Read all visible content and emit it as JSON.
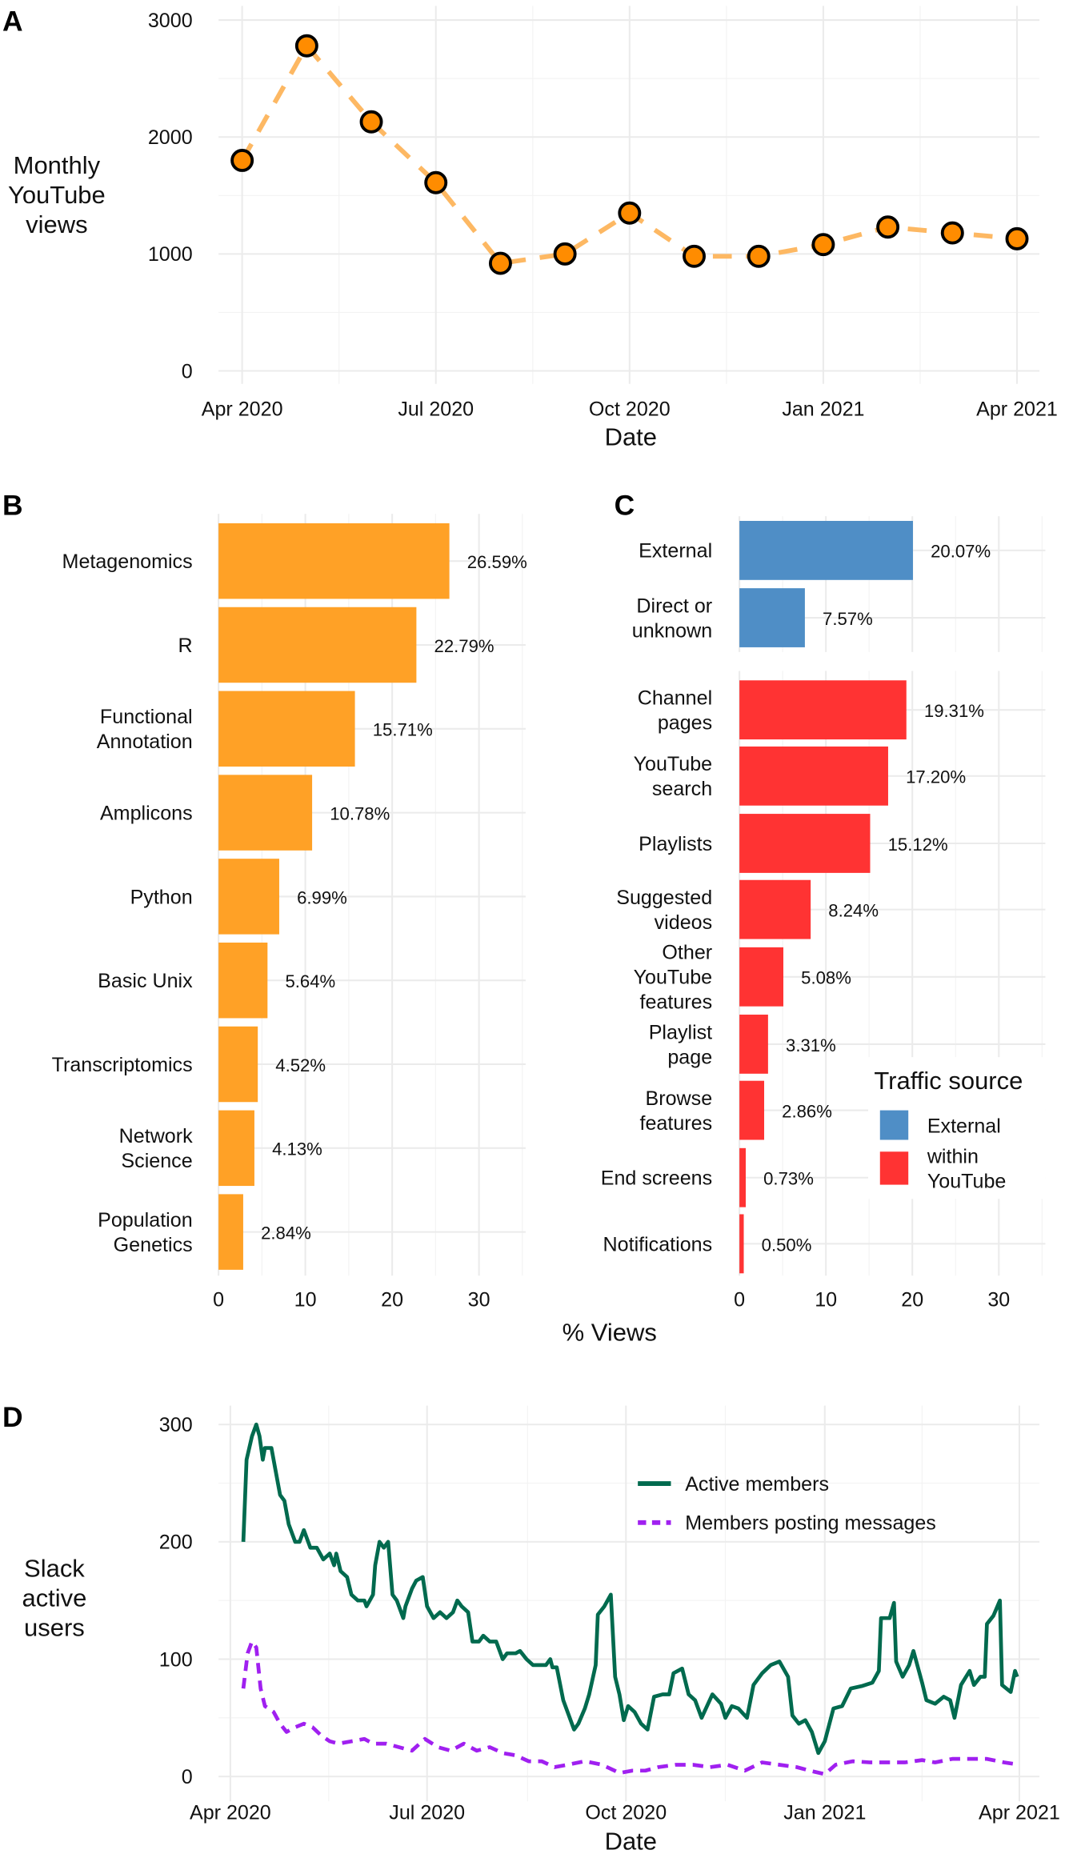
{
  "chart_data": [
    {
      "panel": "A",
      "type": "line",
      "title": "",
      "xlabel": "Date",
      "ylabel": [
        "Monthly",
        "YouTube",
        "views"
      ],
      "x": [
        "2020-04",
        "2020-05",
        "2020-06",
        "2020-07",
        "2020-08",
        "2020-09",
        "2020-10",
        "2020-11",
        "2020-12",
        "2021-01",
        "2021-02",
        "2021-03",
        "2021-04"
      ],
      "values": [
        1800,
        2780,
        2130,
        1610,
        920,
        1000,
        1350,
        980,
        980,
        1080,
        1230,
        1180,
        1130
      ],
      "ylim": [
        0,
        3000
      ],
      "yticks": [
        "0",
        "1000",
        "2000",
        "3000"
      ],
      "xticks": [
        "Apr 2020",
        "Jul 2020",
        "Oct 2020",
        "Jan 2021",
        "Apr 2021"
      ],
      "line_color": "#FDB863",
      "point_color": "#FF8C00",
      "grid": true
    },
    {
      "panel": "B",
      "type": "bar",
      "orientation": "horizontal",
      "categories": [
        [
          "Metagenomics"
        ],
        [
          "R"
        ],
        [
          "Functional",
          "Annotation"
        ],
        [
          "Amplicons"
        ],
        [
          "Python"
        ],
        [
          "Basic Unix"
        ],
        [
          "Transcriptomics"
        ],
        [
          "Network",
          "Science"
        ],
        [
          "Population",
          "Genetics"
        ]
      ],
      "values": [
        26.59,
        22.79,
        15.71,
        10.78,
        6.99,
        5.64,
        4.52,
        4.13,
        2.84
      ],
      "labels": [
        "26.59%",
        "22.79%",
        "15.71%",
        "10.78%",
        "6.99%",
        "5.64%",
        "4.52%",
        "4.13%",
        "2.84%"
      ],
      "xlim": [
        0,
        35
      ],
      "xticks": [
        "0",
        "10",
        "20",
        "30"
      ],
      "color": "#FFA126"
    },
    {
      "panel": "C",
      "type": "bar",
      "orientation": "horizontal",
      "categories": [
        [
          "External"
        ],
        [
          "Direct or",
          "unknown"
        ],
        [
          "Channel",
          "pages"
        ],
        [
          "YouTube",
          "search"
        ],
        [
          "Playlists"
        ],
        [
          "Suggested",
          "videos"
        ],
        [
          "Other",
          "YouTube",
          "features"
        ],
        [
          "Playlist",
          "page"
        ],
        [
          "Browse",
          "features"
        ],
        [
          "End screens"
        ],
        [
          "Notifications"
        ]
      ],
      "values": [
        20.07,
        7.57,
        19.31,
        17.2,
        15.12,
        8.24,
        5.08,
        3.31,
        2.86,
        0.73,
        0.5
      ],
      "labels": [
        "20.07%",
        "7.57%",
        "19.31%",
        "17.20%",
        "15.12%",
        "8.24%",
        "5.08%",
        "3.31%",
        "2.86%",
        "0.73%",
        "0.50%"
      ],
      "group": [
        "External",
        "External",
        "within YouTube",
        "within YouTube",
        "within YouTube",
        "within YouTube",
        "within YouTube",
        "within YouTube",
        "within YouTube",
        "within YouTube",
        "within YouTube"
      ],
      "xlim": [
        0,
        35
      ],
      "xticks": [
        "0",
        "10",
        "20",
        "30"
      ],
      "legend": {
        "title": "Traffic source",
        "entries": [
          {
            "label": [
              "External"
            ],
            "color": "#4F8EC6"
          },
          {
            "label": [
              "within",
              "YouTube"
            ],
            "color": "#FF3333"
          }
        ],
        "position": "bottom-right"
      }
    },
    {
      "panel": "D",
      "type": "line",
      "xlabel": "Date",
      "ylabel": [
        "Slack",
        "active",
        "users"
      ],
      "ylim": [
        0,
        300
      ],
      "yticks": [
        "0",
        "100",
        "200",
        "300"
      ],
      "xticks": [
        "Apr 2020",
        "Jul 2020",
        "Oct 2020",
        "Jan 2021",
        "Apr 2021"
      ],
      "x_unit": "days since 2020-04-01",
      "series": [
        {
          "name": "Active members",
          "color": "#006A4E",
          "dash": false,
          "x": [
            6,
            7.5,
            10,
            12,
            13.5,
            15,
            16,
            19,
            21,
            23,
            25,
            27,
            30,
            32,
            34,
            37,
            40,
            43,
            46,
            48,
            49,
            51,
            54,
            56,
            59,
            62,
            63,
            66,
            67,
            69,
            71,
            73,
            75,
            77,
            80,
            81,
            84,
            86,
            89,
            91,
            94,
            97,
            100,
            103,
            105,
            107,
            110,
            112,
            115,
            117,
            120,
            123,
            126,
            128,
            132,
            134,
            137,
            140,
            143,
            146,
            148,
            149,
            151,
            154,
            157,
            159,
            161,
            164,
            166,
            169,
            170,
            173,
            176,
            178,
            180,
            182,
            184,
            187,
            190,
            193,
            196,
            200,
            203,
            205,
            209,
            212,
            215,
            218,
            223,
            227,
            229,
            232,
            235,
            239,
            242,
            246,
            250,
            254,
            258,
            260,
            263,
            266,
            269,
            272,
            275,
            279,
            283,
            287,
            292,
            297,
            300,
            301,
            305,
            307,
            308,
            311,
            314,
            316,
            320,
            322,
            326,
            330,
            333,
            335,
            338,
            342,
            344,
            347,
            349,
            350,
            353,
            356,
            357,
            361,
            363,
            364
          ],
          "y": [
            200,
            270,
            290,
            300,
            290,
            270,
            280,
            280,
            260,
            240,
            235,
            215,
            200,
            200,
            210,
            195,
            195,
            185,
            190,
            180,
            190,
            175,
            170,
            155,
            150,
            150,
            145,
            155,
            180,
            200,
            195,
            200,
            155,
            150,
            135,
            145,
            160,
            167,
            170,
            145,
            135,
            140,
            135,
            140,
            150,
            145,
            140,
            115,
            115,
            120,
            115,
            115,
            100,
            105,
            105,
            107,
            100,
            95,
            95,
            95,
            100,
            93,
            93,
            65,
            50,
            40,
            45,
            58,
            70,
            95,
            138,
            145,
            155,
            85,
            70,
            48,
            60,
            55,
            45,
            40,
            68,
            70,
            70,
            88,
            92,
            70,
            65,
            50,
            70,
            62,
            50,
            60,
            58,
            50,
            78,
            88,
            95,
            98,
            85,
            52,
            45,
            48,
            38,
            20,
            30,
            58,
            60,
            75,
            77,
            80,
            90,
            135,
            135,
            148,
            98,
            85,
            95,
            107,
            80,
            65,
            62,
            68,
            65,
            50,
            78,
            90,
            78,
            85,
            85,
            130,
            137,
            150,
            78,
            72,
            90,
            85
          ]
        },
        {
          "name": "Members posting messages",
          "color": "#A020F0",
          "dash": true,
          "x": [
            6,
            8,
            10,
            12,
            14,
            16,
            20,
            23,
            26,
            30,
            34,
            38,
            42,
            46,
            50,
            56,
            62,
            66,
            72,
            78,
            84,
            90,
            96,
            102,
            108,
            114,
            120,
            126,
            132,
            138,
            144,
            150,
            156,
            164,
            172,
            180,
            186,
            192,
            198,
            206,
            214,
            222,
            230,
            238,
            246,
            254,
            262,
            268,
            275,
            280,
            288,
            296,
            304,
            312,
            320,
            326,
            334,
            342,
            350,
            358,
            365
          ],
          "y": [
            75,
            105,
            115,
            110,
            75,
            60,
            55,
            45,
            38,
            42,
            45,
            42,
            35,
            30,
            28,
            30,
            32,
            28,
            28,
            25,
            22,
            32,
            25,
            22,
            28,
            22,
            25,
            20,
            18,
            13,
            13,
            8,
            10,
            13,
            10,
            3,
            5,
            5,
            8,
            10,
            10,
            8,
            10,
            5,
            12,
            10,
            8,
            5,
            2,
            10,
            13,
            12,
            12,
            12,
            14,
            12,
            15,
            15,
            15,
            12,
            10
          ]
        }
      ],
      "legend": "top-right"
    }
  ],
  "panel_letters": [
    "A",
    "B",
    "C",
    "D"
  ],
  "shared_xlabel": "% Views"
}
